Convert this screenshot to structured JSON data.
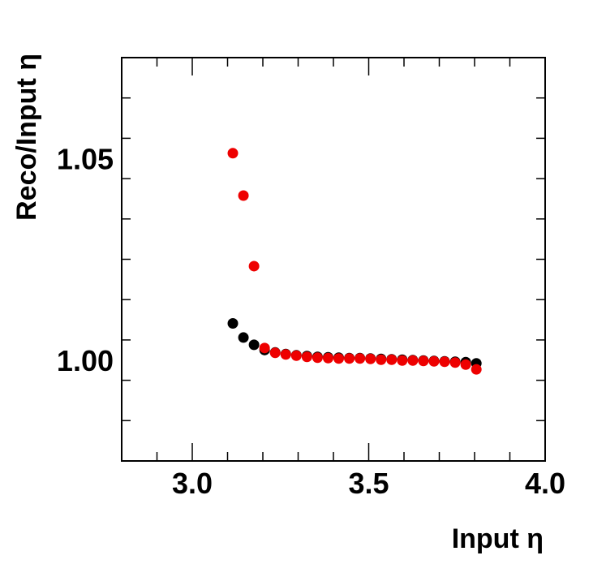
{
  "chart_data": {
    "type": "scatter",
    "xlabel": "Input η",
    "ylabel": "Reco/Input η",
    "xlim": [
      2.8,
      4.0
    ],
    "ylim": [
      0.975,
      1.075
    ],
    "x_ticks": [
      "3.0",
      "3.5",
      "4.0"
    ],
    "y_ticks": [
      "1.00",
      "1.05"
    ],
    "x_tick_values": [
      3.0,
      3.5,
      4.0
    ],
    "y_tick_values": [
      1.0,
      1.05
    ],
    "grid": false,
    "legend": "none",
    "series": [
      {
        "color": "#000000",
        "x": [
          3.115,
          3.145,
          3.175,
          3.205,
          3.235,
          3.265,
          3.295,
          3.325,
          3.355,
          3.385,
          3.415,
          3.445,
          3.475,
          3.505,
          3.535,
          3.565,
          3.595,
          3.625,
          3.655,
          3.685,
          3.715,
          3.745,
          3.775,
          3.805
        ],
        "y": [
          1.0091,
          1.0056,
          1.0038,
          1.0025,
          1.0019,
          1.0015,
          1.0012,
          1.001,
          1.0008,
          1.0007,
          1.0006,
          1.0005,
          1.0005,
          1.0004,
          1.0003,
          1.0002,
          1.0001,
          1.0,
          0.9999,
          0.9998,
          0.9997,
          0.9996,
          0.9995,
          0.9992
        ]
      },
      {
        "color": "#ee0000",
        "x": [
          3.115,
          3.145,
          3.175,
          3.205,
          3.235,
          3.265,
          3.295,
          3.325,
          3.355,
          3.385,
          3.415,
          3.445,
          3.475,
          3.505,
          3.535,
          3.565,
          3.595,
          3.625,
          3.655,
          3.685,
          3.715,
          3.745,
          3.775,
          3.805
        ],
        "y": [
          1.0513,
          1.0408,
          1.0233,
          1.003,
          1.0018,
          1.0014,
          1.0011,
          1.0008,
          1.0006,
          1.0005,
          1.0004,
          1.0004,
          1.0004,
          1.0003,
          1.0001,
          1.0001,
          0.9999,
          0.9999,
          0.9998,
          0.9997,
          0.9996,
          0.9994,
          0.9989,
          0.9977
        ]
      }
    ]
  }
}
